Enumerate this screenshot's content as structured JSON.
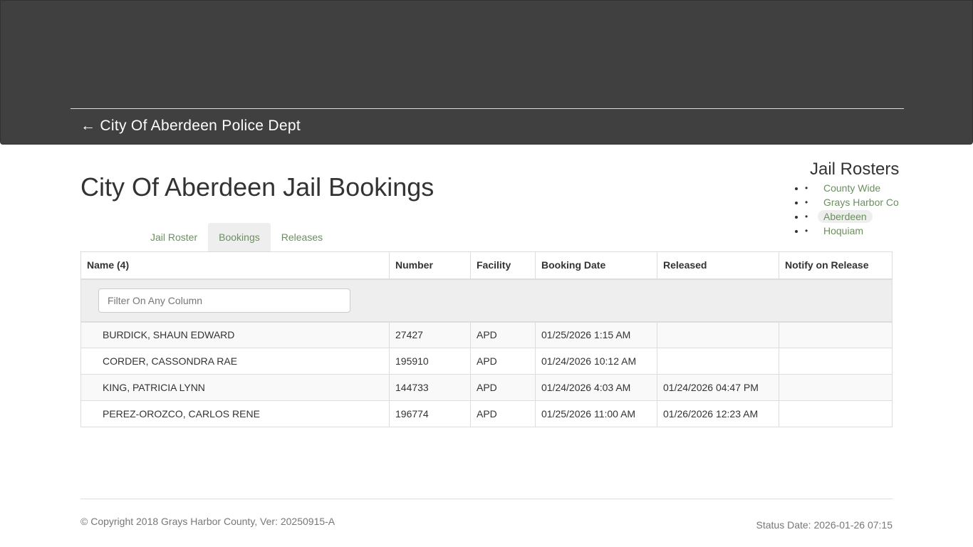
{
  "header": {
    "back_label": "← City Of Aberdeen Police Dept"
  },
  "page_title": "City Of Aberdeen Jail Bookings",
  "sidebar": {
    "title": "Jail Rosters",
    "items": [
      {
        "label": "County Wide"
      },
      {
        "label": "Grays Harbor Co"
      },
      {
        "label": "Aberdeen",
        "active": true
      },
      {
        "label": "Hoquiam"
      }
    ]
  },
  "tabs": [
    {
      "label": "Jail Roster"
    },
    {
      "label": "Bookings",
      "active": true
    },
    {
      "label": "Releases"
    }
  ],
  "table": {
    "columns": [
      "Name (4)",
      "Number",
      "Facility",
      "Booking Date",
      "Released",
      "Notify on Release"
    ],
    "filter_placeholder": "Filter On Any Column",
    "rows": [
      [
        "BURDICK, SHAUN EDWARD",
        "27427",
        "APD",
        "01/25/2026 1:15 AM",
        "",
        ""
      ],
      [
        "CORDER, CASSONDRA RAE",
        "195910",
        "APD",
        "01/24/2026 10:12 AM",
        "",
        ""
      ],
      [
        "KING, PATRICIA LYNN",
        "144733",
        "APD",
        "01/24/2026 4:03 AM",
        "01/24/2026 04:47 PM",
        ""
      ],
      [
        "PEREZ-OROZCO, CARLOS RENE",
        "196774",
        "APD",
        "01/25/2026 11:00 AM",
        "01/26/2026 12:23 AM",
        ""
      ]
    ]
  },
  "footer": {
    "copyright": "© Copyright 2018 Grays Harbor County, Ver: 20250915-A",
    "status": "Status Date: 2026-01-26 07:15"
  },
  "colors": {
    "header_bg": "#404040",
    "link": "#6b8f5e"
  }
}
